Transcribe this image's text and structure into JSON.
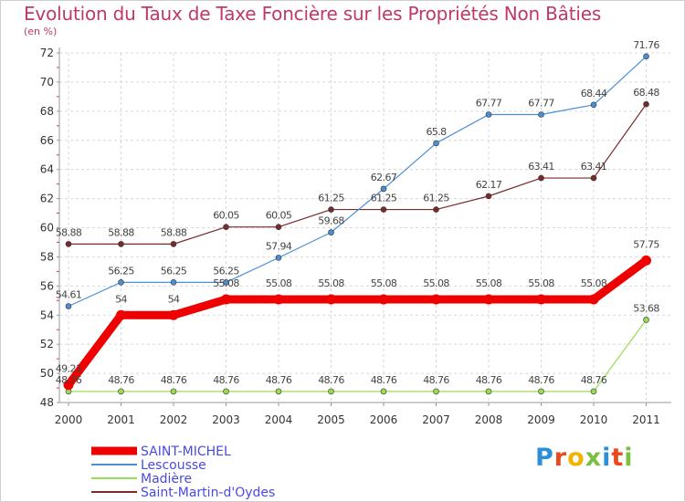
{
  "title": "Evolution du Taux de Taxe Foncière sur les Propriétés Non Bâties",
  "subtitle": "(en %)",
  "logo": "Proxiti",
  "chart_data": {
    "type": "line",
    "title": "Evolution du Taux de Taxe Foncière sur les Propriétés Non Bâties",
    "ylabel": "(en %)",
    "xlabel": "",
    "ylim": [
      48,
      72
    ],
    "yticks": [
      48,
      50,
      52,
      54,
      56,
      58,
      60,
      62,
      64,
      66,
      68,
      70,
      72
    ],
    "x": [
      "2000",
      "2001",
      "2002",
      "2003",
      "2004",
      "2005",
      "2006",
      "2007",
      "2008",
      "2009",
      "2010",
      "2011"
    ],
    "grid": "horizontal dashed",
    "legend_position": "bottom-left",
    "series": [
      {
        "name": "SAINT-MICHEL",
        "color": "#ee0000",
        "values": [
          49.21,
          54,
          54,
          55.08,
          55.08,
          55.08,
          55.08,
          55.08,
          55.08,
          55.08,
          55.08,
          57.75
        ],
        "labels": [
          "49.21",
          "54",
          "54",
          "55.08",
          "55.08",
          "55.08",
          "55.08",
          "55.08",
          "55.08",
          "55.08",
          "55.08",
          "57.75"
        ]
      },
      {
        "name": "Lescousse",
        "color": "#4b8fd3",
        "values": [
          54.61,
          56.25,
          56.25,
          56.25,
          57.94,
          59.68,
          62.67,
          65.8,
          67.77,
          67.77,
          68.44,
          71.76
        ],
        "labels": [
          "54.61",
          "56.25",
          "56.25",
          "56.25",
          "57.94",
          "59.68",
          "62.67",
          "65.8",
          "67.77",
          "67.77",
          "68.44",
          "71.76"
        ]
      },
      {
        "name": "Madière",
        "color": "#99dd55",
        "values": [
          48.76,
          48.76,
          48.76,
          48.76,
          48.76,
          48.76,
          48.76,
          48.76,
          48.76,
          48.76,
          48.76,
          53.68
        ],
        "labels": [
          "48.76",
          "48.76",
          "48.76",
          "48.76",
          "48.76",
          "48.76",
          "48.76",
          "48.76",
          "48.76",
          "48.76",
          "48.76",
          "53.68"
        ]
      },
      {
        "name": "Saint-Martin-d'Oydes",
        "color": "#7a2a2a",
        "values": [
          58.88,
          58.88,
          58.88,
          60.05,
          60.05,
          61.25,
          61.25,
          61.25,
          62.17,
          63.41,
          63.41,
          68.48
        ],
        "labels": [
          "58.88",
          "58.88",
          "58.88",
          "60.05",
          "60.05",
          "61.25",
          "61.25",
          "61.25",
          "62.17",
          "63.41",
          "63.41",
          "68.48"
        ]
      }
    ]
  }
}
